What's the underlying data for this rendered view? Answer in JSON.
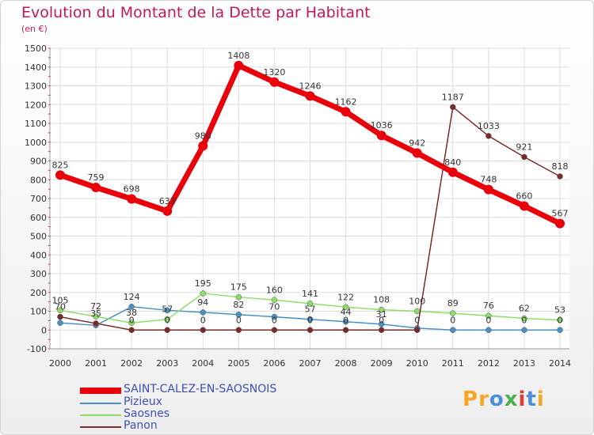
{
  "chart_data": {
    "type": "line",
    "title": "Evolution du Montant de la Dette par Habitant",
    "subtitle": "(en €)",
    "x": [
      "2000",
      "2001",
      "2002",
      "2003",
      "2004",
      "2005",
      "2006",
      "2007",
      "2008",
      "2009",
      "2010",
      "2011",
      "2012",
      "2013",
      "2014"
    ],
    "ylim": [
      -100,
      1500
    ],
    "yticks": [
      -100,
      0,
      100,
      200,
      300,
      400,
      500,
      600,
      700,
      800,
      900,
      1000,
      1100,
      1200,
      1300,
      1400,
      1500
    ],
    "grid": true,
    "legend_position": "bottom-left",
    "series": [
      {
        "name": "SAINT-CALEZ-EN-SAOSNOIS",
        "color": "#e8000b",
        "values": [
          825,
          759,
          698,
          633,
          980,
          1408,
          1320,
          1246,
          1162,
          1036,
          942,
          840,
          748,
          660,
          567
        ],
        "labels": [
          "825",
          "759",
          "698",
          "633",
          "980",
          "1408",
          "1320",
          "1246",
          "1162",
          "1036",
          "942",
          "840",
          "748",
          "660",
          "567"
        ]
      },
      {
        "name": "Pizieux",
        "color": "#4a90c2",
        "values": [
          38,
          25,
          124,
          105,
          94,
          82,
          70,
          57,
          44,
          31,
          10,
          0,
          0,
          0,
          0
        ],
        "labels": [
          "",
          "",
          "124",
          "",
          "94",
          "82",
          "70",
          "57",
          "44",
          "31",
          "",
          "0",
          "0",
          "0",
          "0"
        ]
      },
      {
        "name": "Saosnes",
        "color": "#8edc6a",
        "values": [
          105,
          72,
          38,
          57,
          195,
          175,
          160,
          141,
          122,
          108,
          100,
          89,
          76,
          62,
          53
        ],
        "labels": [
          "105",
          "72",
          "38",
          "57",
          "195",
          "175",
          "160",
          "141",
          "122",
          "108",
          "100",
          "89",
          "76",
          "62",
          "53"
        ]
      },
      {
        "name": "Panon",
        "color": "#7b2a2a",
        "values": [
          70,
          35,
          0,
          0,
          0,
          0,
          0,
          0,
          0,
          0,
          0,
          1187,
          1033,
          921,
          818
        ],
        "labels": [
          "70",
          "35",
          "0",
          "0",
          "0",
          "0",
          "0",
          "0",
          "0",
          "0",
          "0",
          "1187",
          "1033",
          "921",
          "818"
        ]
      }
    ]
  },
  "logo": {
    "text": "Proxiti",
    "letters": [
      {
        "ch": "P",
        "color": "#f5a623"
      },
      {
        "ch": "r",
        "color": "#f5a623"
      },
      {
        "ch": "o",
        "color": "#4a90d9"
      },
      {
        "ch": "x",
        "color": "#4caf50"
      },
      {
        "ch": "i",
        "color": "#e53935"
      },
      {
        "ch": "t",
        "color": "#4a90d9"
      },
      {
        "ch": "i",
        "color": "#f5a623"
      }
    ]
  }
}
